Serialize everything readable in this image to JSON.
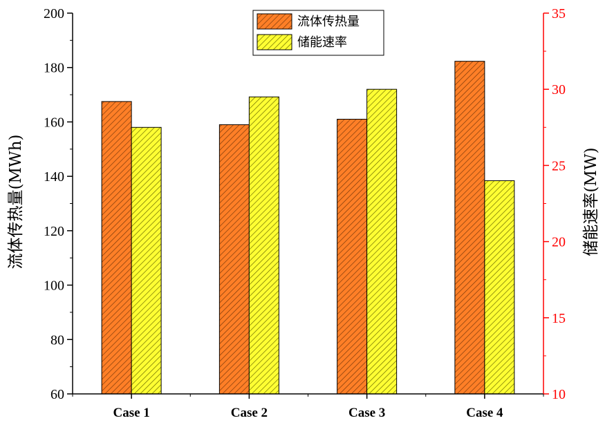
{
  "chart_data": {
    "type": "bar",
    "categories": [
      "Case 1",
      "Case 2",
      "Case 3",
      "Case 4"
    ],
    "series": [
      {
        "name": "流体传热量",
        "axis": "left",
        "color": "#ff7f27",
        "hatch_color": "#7a3a0a",
        "values": [
          167.5,
          159,
          161,
          182.3
        ]
      },
      {
        "name": "储能速率",
        "axis": "right",
        "color": "#ffff33",
        "hatch_color": "#6b6b00",
        "values": [
          27.5,
          29.5,
          30,
          24
        ]
      }
    ],
    "ylabel": "流体传热量(MWh)",
    "ylabel_right": "储能速率(MW)",
    "ylim": [
      60,
      200
    ],
    "ylim_right": [
      10,
      35
    ],
    "yticks": [
      60,
      80,
      100,
      120,
      140,
      160,
      180,
      200
    ],
    "yticks_right": [
      10,
      15,
      20,
      25,
      30,
      35
    ],
    "right_axis_color": "#ff0000",
    "legend_position": "top-center",
    "grid": false
  }
}
